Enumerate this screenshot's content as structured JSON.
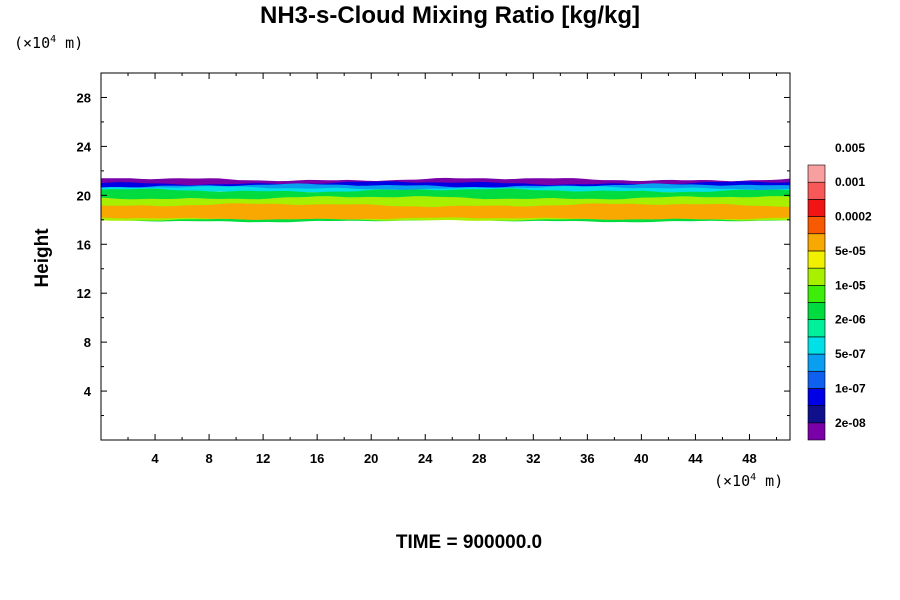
{
  "chart_data": {
    "type": "heatmap",
    "title": "NH3-s-Cloud Mixing Ratio [kg/kg]",
    "xlabel": "",
    "ylabel": "Height",
    "x_unit_prefix": "(×10",
    "x_unit_exp": "4",
    "x_unit_suffix": " m)",
    "y_unit_prefix": "(×10",
    "y_unit_exp": "4",
    "y_unit_suffix": " m)",
    "xlim": [
      0,
      51
    ],
    "ylim": [
      0,
      30
    ],
    "x_ticks": [
      "4",
      "8",
      "12",
      "16",
      "20",
      "24",
      "28",
      "32",
      "36",
      "40",
      "44",
      "48"
    ],
    "y_ticks": [
      "4",
      "8",
      "12",
      "16",
      "20",
      "24",
      "28"
    ],
    "time_label": "TIME = 900000.0",
    "legend": {
      "labels": [
        "2e-08",
        "1e-07",
        "5e-07",
        "2e-06",
        "1e-05",
        "5e-05",
        "0.0002",
        "0.001",
        "0.005"
      ],
      "colors": [
        "#7a00a8",
        "#10108c",
        "#0000e6",
        "#1060f0",
        "#0a9ef0",
        "#00e0e6",
        "#00f09c",
        "#00dc40",
        "#3cee0a",
        "#a8f000",
        "#f0f000",
        "#f8a800",
        "#f85a00",
        "#f01414",
        "#f85858",
        "#f8a0a0"
      ]
    },
    "cloud_layer": {
      "base_height": 17.8,
      "top_height": 21.3,
      "layers": [
        {
          "level": "2e-08",
          "color": "#7a00a8",
          "bottom": 20.8,
          "top": 21.3
        },
        {
          "level": "1e-07",
          "color": "#0000e6",
          "bottom": 20.6,
          "top": 21.0
        },
        {
          "level": "5e-07",
          "color": "#0a9ef0",
          "bottom": 20.4,
          "top": 20.8
        },
        {
          "level": "2e-06",
          "color": "#00e0e6",
          "bottom": 20.2,
          "top": 20.6
        },
        {
          "level": "1e-05",
          "color": "#00dc40",
          "bottom": 17.9,
          "top": 20.4
        },
        {
          "level": "5e-05",
          "color": "#a8f000",
          "bottom": 18.0,
          "top": 19.8
        },
        {
          "level": "0.0002",
          "color": "#f8a800",
          "bottom": 18.1,
          "top": 19.2
        }
      ],
      "orange_patches": [
        {
          "x_start": 1.0,
          "x_end": 14.5,
          "bottom": 18.2,
          "top": 19.0
        },
        {
          "x_start": 39.5,
          "x_end": 45.0,
          "bottom": 18.3,
          "top": 18.9
        },
        {
          "x_start": 49.8,
          "x_end": 51.0,
          "bottom": 18.2,
          "top": 19.0
        }
      ]
    }
  }
}
